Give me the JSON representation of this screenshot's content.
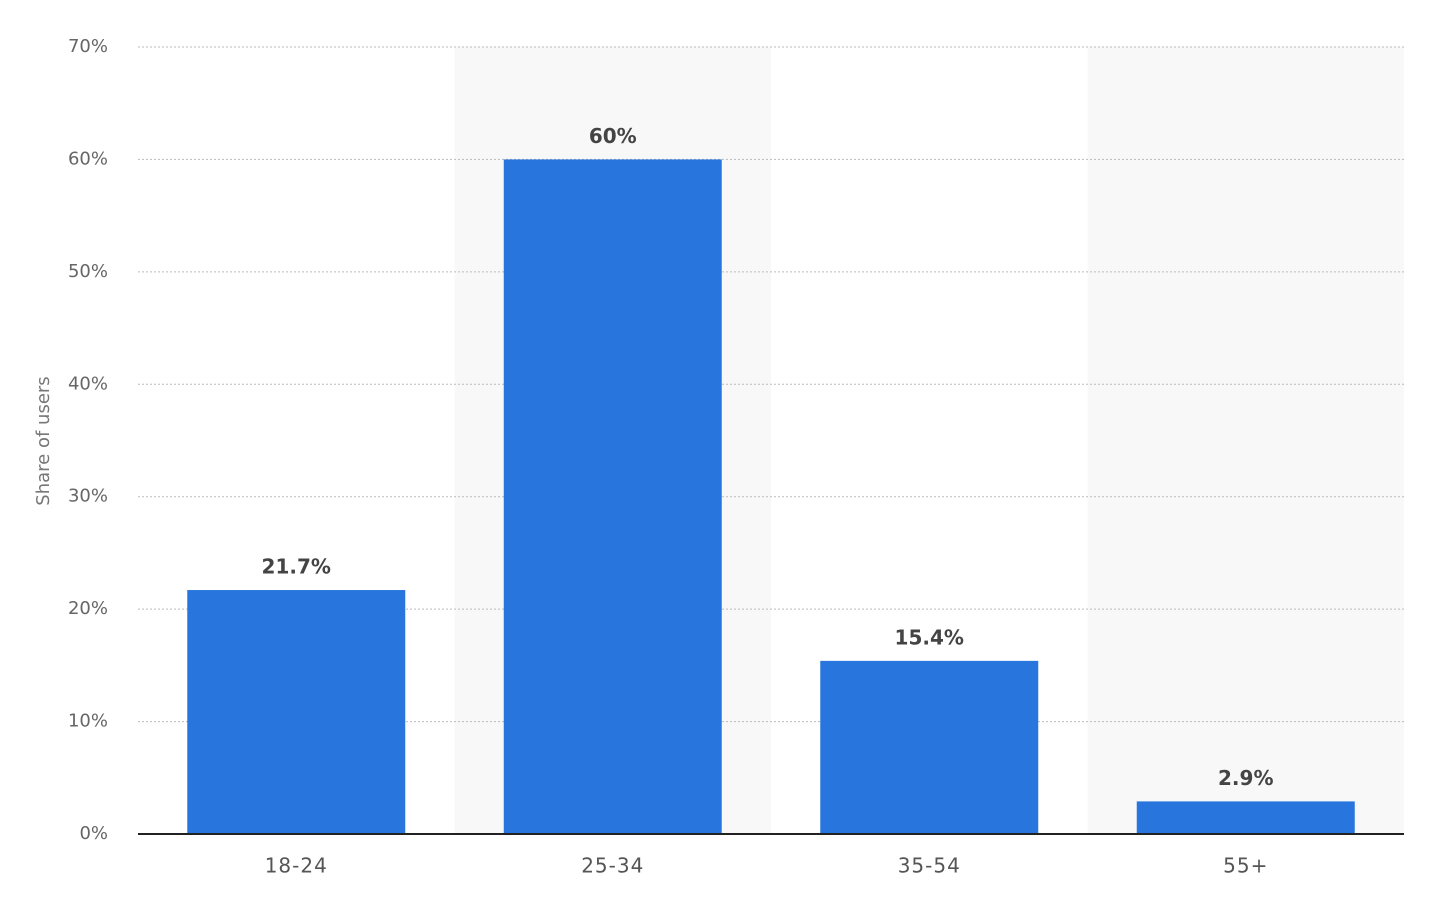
{
  "chart_data": {
    "type": "bar",
    "y_axis_label": "Share of users",
    "categories": [
      "18-24",
      "25-34",
      "35-54",
      "55+"
    ],
    "values": [
      21.7,
      60,
      15.4,
      2.9
    ],
    "value_labels": [
      "21.7%",
      "60%",
      "15.4%",
      "2.9%"
    ],
    "color": "#2876dd",
    "ylim": [
      0,
      70
    ],
    "yticks": [
      {
        "value": 0,
        "label": "0%"
      },
      {
        "value": 10,
        "label": "10%"
      },
      {
        "value": 20,
        "label": "20%"
      },
      {
        "value": 30,
        "label": "30%"
      },
      {
        "value": 40,
        "label": "40%"
      },
      {
        "value": 50,
        "label": "50%"
      },
      {
        "value": 60,
        "label": "60%"
      },
      {
        "value": 70,
        "label": "70%"
      }
    ],
    "grid": true
  }
}
